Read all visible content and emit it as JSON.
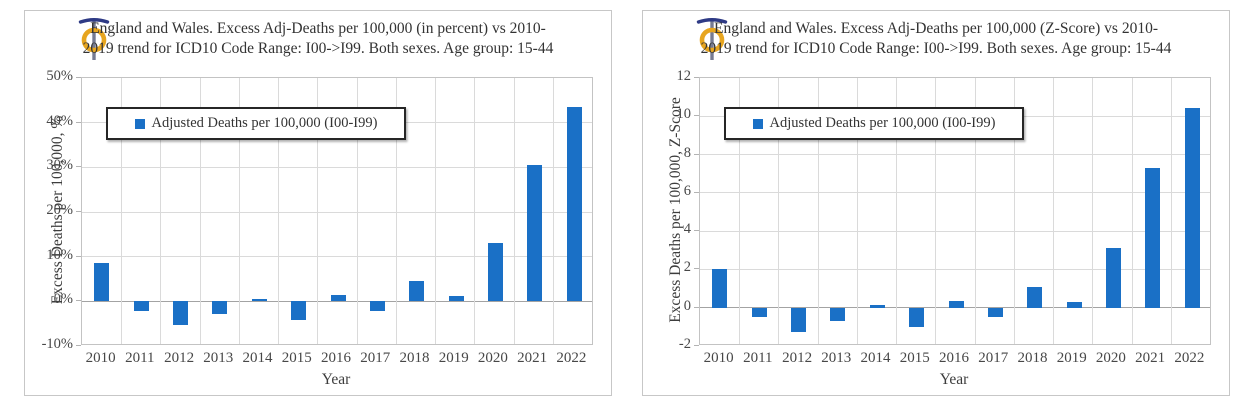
{
  "colors": {
    "bar": "#1a70c6",
    "grid_line": "#dadada",
    "zero_line": "#a3a3a3",
    "plot_border": "#c3c3c3",
    "panel_border": "#c7c7c7",
    "text": "#3d3d3d",
    "logo_ring_gold": "#e7a51f",
    "logo_bar_navy": "#2e3a85",
    "logo_stem_gray": "#767b92"
  },
  "chart_data": [
    {
      "type": "bar",
      "title": "England and Wales. Excess Adj-Deaths per 100,000 (in percent) vs 2010-2019 trend for ICD10 Code Range: I00->I99. Both sexes. Age group: 15-44",
      "xlabel": "Year",
      "ylabel": "Excess Deaths per 100,000, %",
      "ylim": [
        -10,
        50
      ],
      "ytick_values": [
        50,
        40,
        30,
        20,
        10,
        0,
        -10
      ],
      "ytick_labels": [
        "50%",
        "40%",
        "30%",
        "20%",
        "10%",
        "0%",
        "-10%"
      ],
      "categories": [
        "2010",
        "2011",
        "2012",
        "2013",
        "2014",
        "2015",
        "2016",
        "2017",
        "2018",
        "2019",
        "2020",
        "2021",
        "2022"
      ],
      "series": [
        {
          "name": "Adjusted Deaths per 100,000 (I00-I99)",
          "values": [
            8.5,
            -2.2,
            -5.2,
            -2.9,
            0.6,
            -4.1,
            1.5,
            -2.2,
            4.6,
            1.1,
            13.0,
            30.5,
            43.5
          ]
        }
      ],
      "grid": true,
      "legend_position": "inside-upper-left"
    },
    {
      "type": "bar",
      "title": "England and Wales. Excess Adj-Deaths per 100,000 (Z-Score) vs 2010-2019 trend for ICD10 Code Range: I00->I99. Both sexes. Age group: 15-44",
      "xlabel": "Year",
      "ylabel": "Excess Deaths per 100,000, Z-Score",
      "ylim": [
        -2,
        12
      ],
      "ytick_values": [
        12,
        10,
        8,
        6,
        4,
        2,
        0,
        -2
      ],
      "ytick_labels": [
        "12",
        "10",
        "8",
        "6",
        "4",
        "2",
        "0",
        "-2"
      ],
      "categories": [
        "2010",
        "2011",
        "2012",
        "2013",
        "2014",
        "2015",
        "2016",
        "2017",
        "2018",
        "2019",
        "2020",
        "2021",
        "2022"
      ],
      "series": [
        {
          "name": "Adjusted Deaths per 100,000 (I00-I99)",
          "values": [
            2.0,
            -0.5,
            -1.25,
            -0.7,
            0.15,
            -1.0,
            0.35,
            -0.5,
            1.1,
            0.3,
            3.1,
            7.3,
            10.45
          ]
        }
      ],
      "grid": true,
      "legend_position": "inside-upper-left"
    }
  ]
}
